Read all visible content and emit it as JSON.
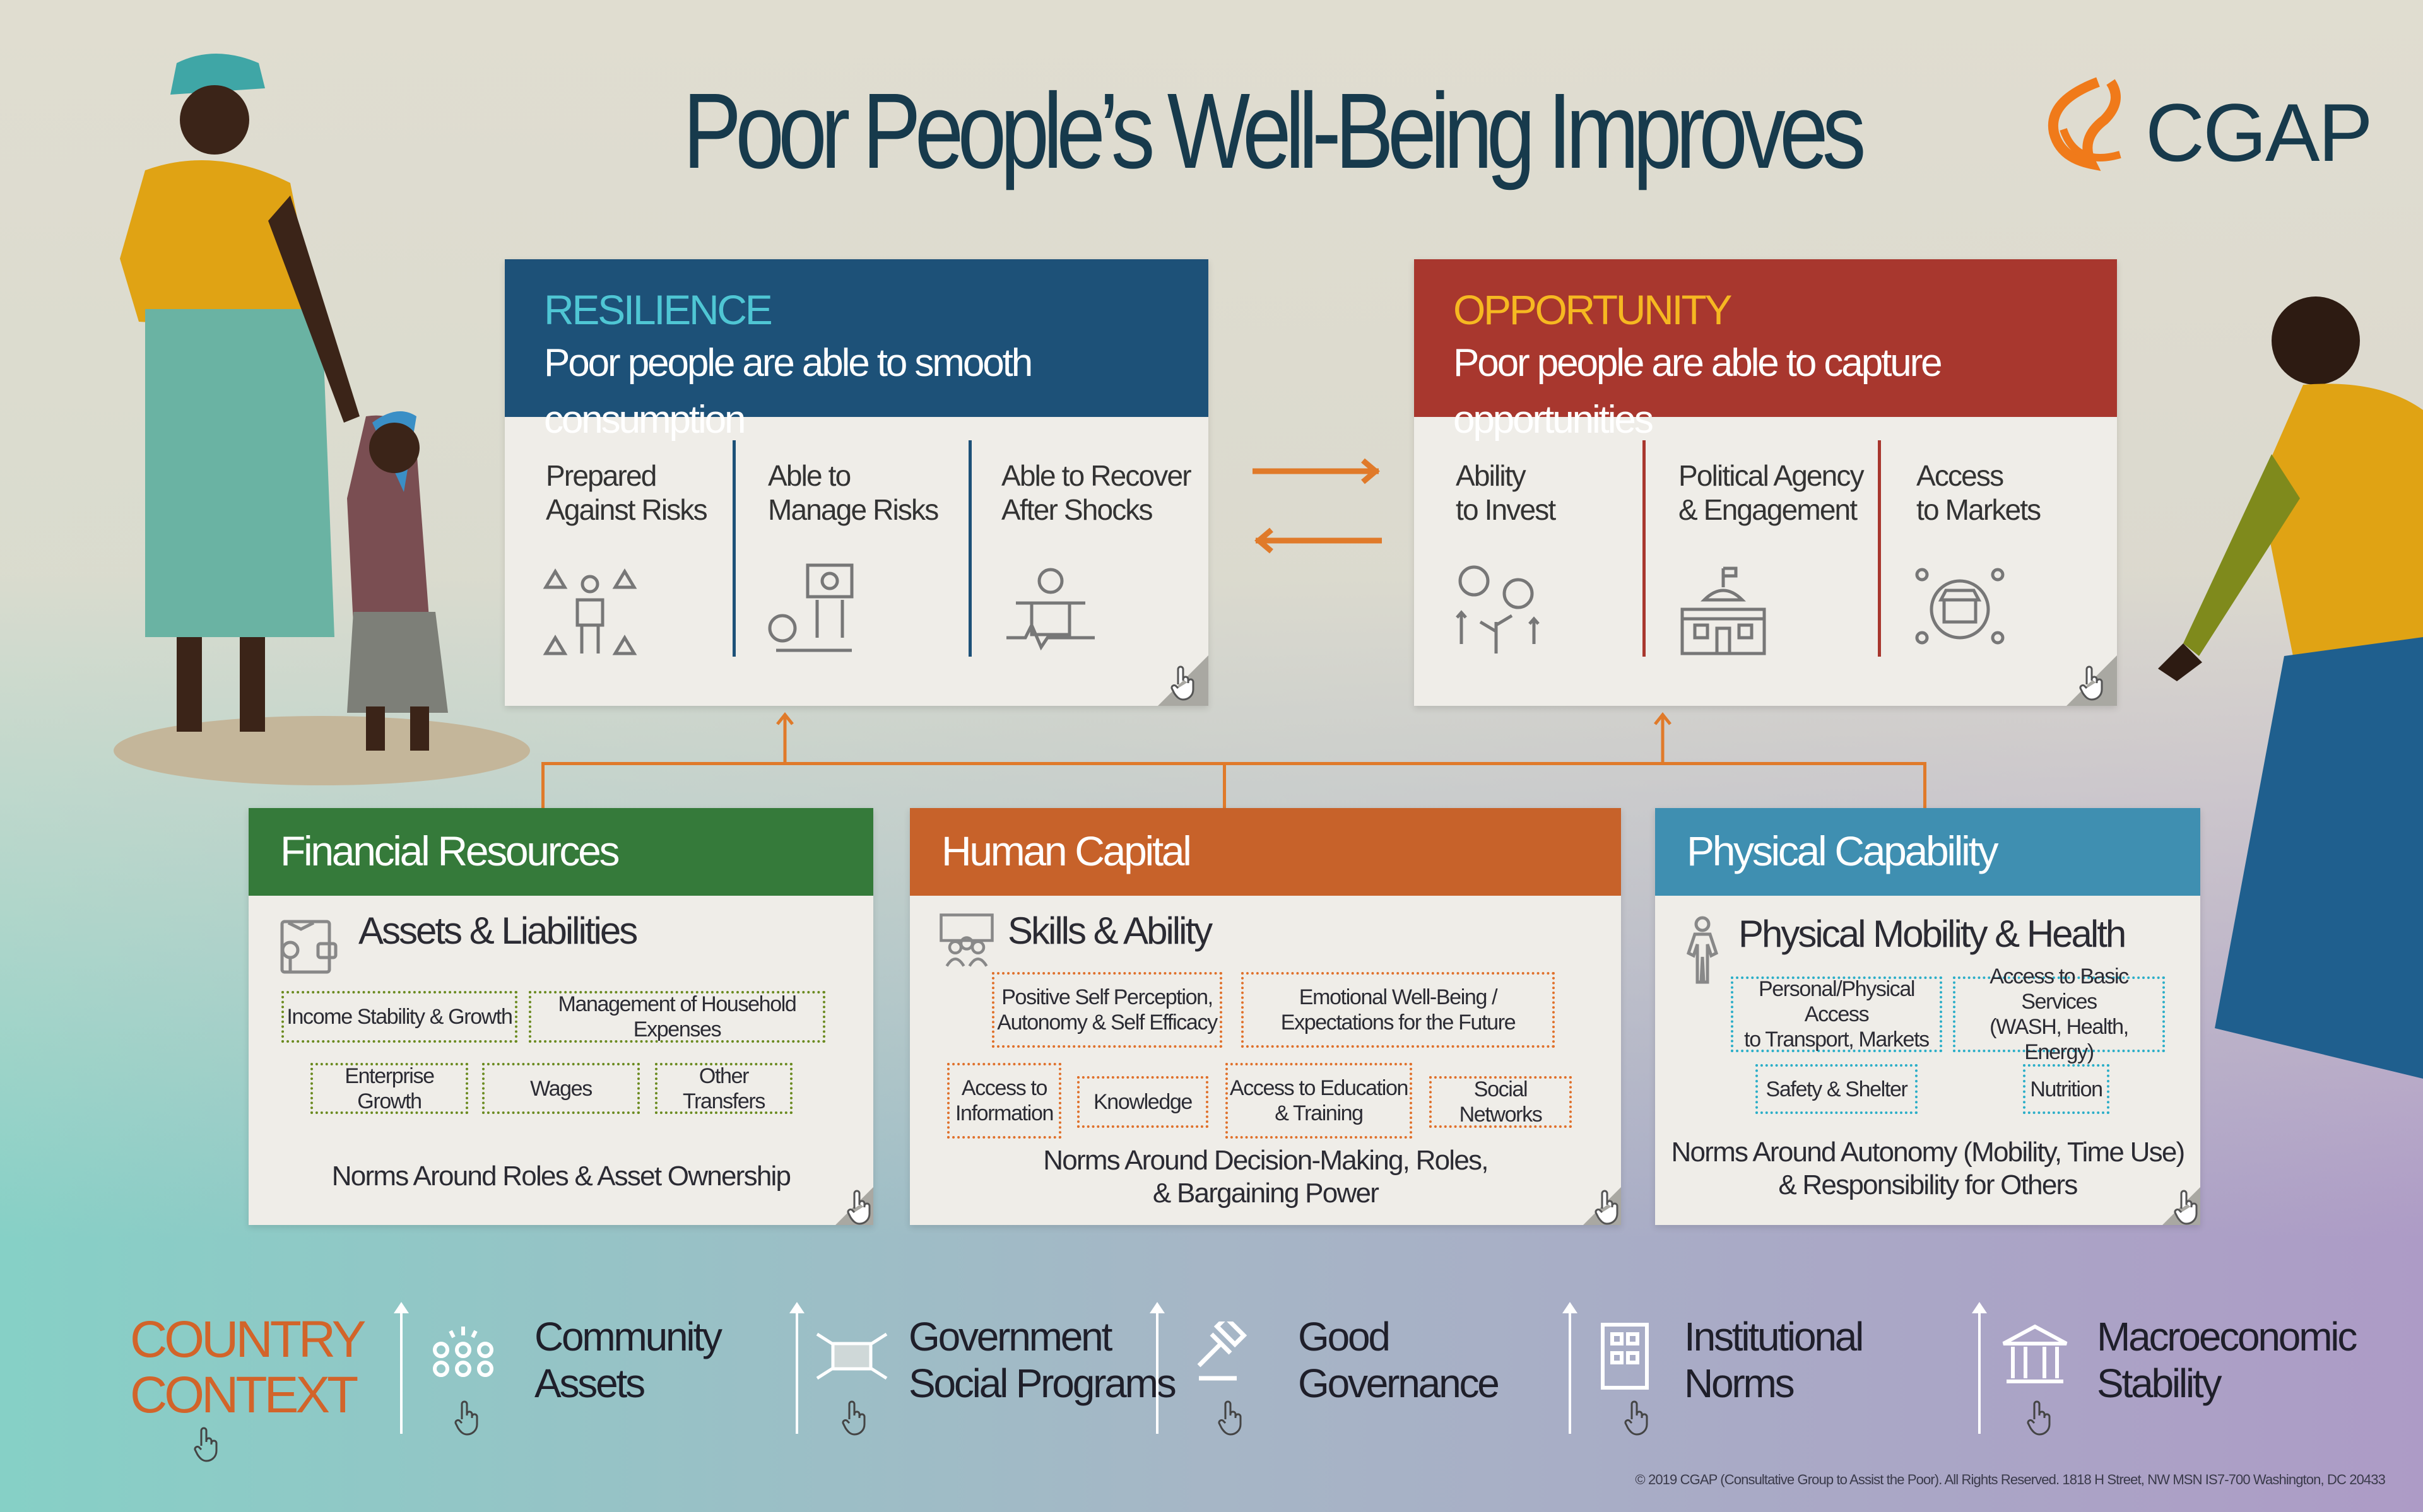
{
  "title": "Poor People’s Well-Being Improves",
  "logo": "CGAP",
  "colors": {
    "resilience": "#1d5178",
    "opportunity": "#a8372e",
    "financial": "#357a3a",
    "human": "#c7622a",
    "physical": "#3f8fb1",
    "accent": "#e07a2a"
  },
  "outcomes": [
    {
      "kicker": "RESILIENCE",
      "subtitle": "Poor people are able to smooth consumption",
      "items": [
        {
          "l1": "Prepared",
          "l2": "Against Risks",
          "icon": "risk-person-icon"
        },
        {
          "l1": "Able to",
          "l2": "Manage Risks",
          "icon": "balance-scale-icon"
        },
        {
          "l1": "Able to Recover",
          "l2": "After Shocks",
          "icon": "recovery-heartbeat-icon"
        }
      ]
    },
    {
      "kicker": "OPPORTUNITY",
      "subtitle": "Poor people are able to capture opportunities",
      "items": [
        {
          "l1": "Ability",
          "l2": "to Invest",
          "icon": "growth-plant-icon"
        },
        {
          "l1": "Political Agency",
          "l2": "& Engagement",
          "icon": "government-building-icon"
        },
        {
          "l1": "Access",
          "l2": "to Markets",
          "icon": "market-people-icon"
        }
      ]
    }
  ],
  "capabilities": [
    {
      "title": "Financial Resources",
      "sub": "Assets & Liabilities",
      "chips": [
        "Income Stability & Growth",
        "Management of Household Expenses",
        "Enterprise Growth",
        "Wages",
        "Other Transfers"
      ],
      "norms": [
        "Norms Around Roles & Asset Ownership"
      ]
    },
    {
      "title": "Human Capital",
      "sub": "Skills & Ability",
      "chips": [
        [
          "Positive Self Perception,",
          "Autonomy & Self Efficacy"
        ],
        [
          "Emotional Well-Being /",
          "Expectations for the Future"
        ],
        [
          "Access to",
          "Information"
        ],
        [
          "Knowledge"
        ],
        [
          "Access to Education",
          "& Training"
        ],
        [
          "Social Networks"
        ]
      ],
      "norms": [
        "Norms Around Decision-Making, Roles,",
        "& Bargaining  Power"
      ]
    },
    {
      "title": "Physical Capability",
      "sub": "Physical Mobility & Health",
      "chips": [
        [
          "Personal/Physical Access",
          "to Transport, Markets"
        ],
        [
          "Access to Basic Services",
          "(WASH, Health, Energy)"
        ],
        [
          "Safety & Shelter"
        ],
        [
          "Nutrition"
        ]
      ],
      "norms": [
        "Norms Around Autonomy (Mobility, Time Use)",
        "& Responsibility for Others"
      ]
    }
  ],
  "context": {
    "label": [
      "COUNTRY",
      "CONTEXT"
    ],
    "items": [
      [
        "Community",
        "Assets"
      ],
      [
        "Government",
        "Social Programs"
      ],
      [
        "Good",
        "Governance"
      ],
      [
        "Institutional",
        "Norms"
      ],
      [
        "Macroeconomic",
        "Stability"
      ]
    ]
  },
  "copyright": "© 2019 CGAP (Consultative Group to Assist the Poor). All Rights Reserved. 1818 H Street, NW MSN IS7-700 Washington, DC 20433"
}
